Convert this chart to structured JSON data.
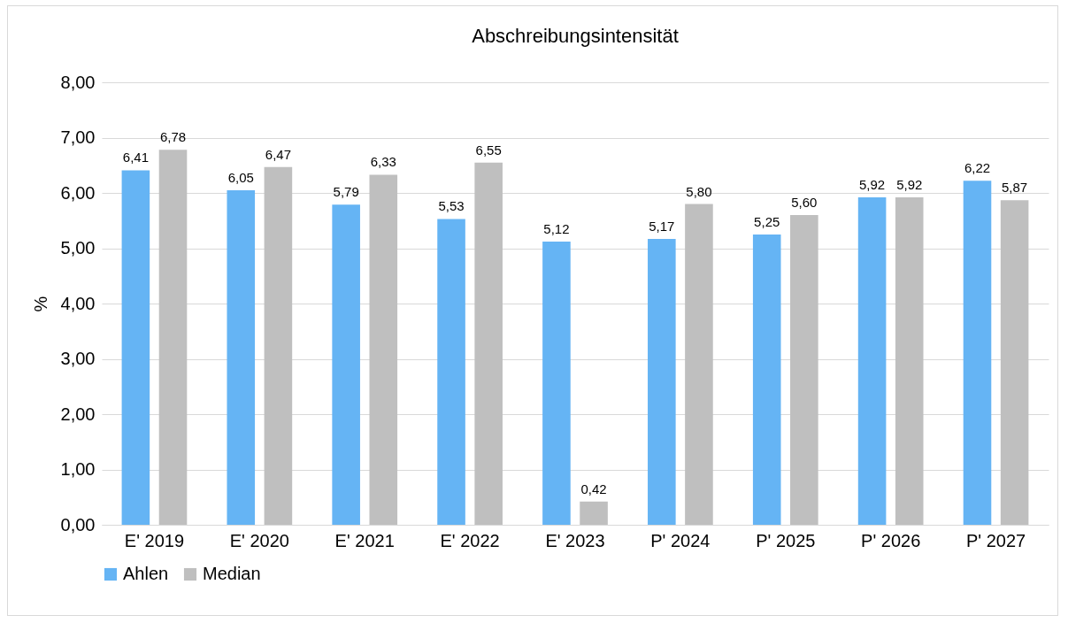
{
  "chart_data": {
    "type": "bar",
    "title": "Abschreibungsintensität",
    "ylabel": "%",
    "categories": [
      "E' 2019",
      "E' 2020",
      "E' 2021",
      "E' 2022",
      "E' 2023",
      "P' 2024",
      "P' 2025",
      "P' 2026",
      "P' 2027"
    ],
    "series": [
      {
        "name": "Ahlen",
        "color": "#65b4f4",
        "values": [
          6.41,
          6.05,
          5.79,
          5.53,
          5.12,
          5.17,
          5.25,
          5.92,
          6.22
        ],
        "value_labels": [
          "6,41",
          "6,05",
          "5,79",
          "5,53",
          "5,12",
          "5,17",
          "5,25",
          "5,92",
          "6,22"
        ]
      },
      {
        "name": "Median",
        "color": "#bfbfbf",
        "values": [
          6.78,
          6.47,
          6.33,
          6.55,
          0.42,
          5.8,
          5.6,
          5.92,
          5.87
        ],
        "value_labels": [
          "6,78",
          "6,47",
          "6,33",
          "6,55",
          "0,42",
          "5,80",
          "5,60",
          "5,92",
          "5,87"
        ]
      }
    ],
    "ylim": [
      0,
      8
    ],
    "yticks": [
      {
        "value": 0,
        "label": "0,00"
      },
      {
        "value": 1,
        "label": "1,00"
      },
      {
        "value": 2,
        "label": "2,00"
      },
      {
        "value": 3,
        "label": "3,00"
      },
      {
        "value": 4,
        "label": "4,00"
      },
      {
        "value": 5,
        "label": "5,00"
      },
      {
        "value": 6,
        "label": "6,00"
      },
      {
        "value": 7,
        "label": "7,00"
      },
      {
        "value": 8,
        "label": "8,00"
      }
    ],
    "grid": "y",
    "legend": "bottom"
  }
}
